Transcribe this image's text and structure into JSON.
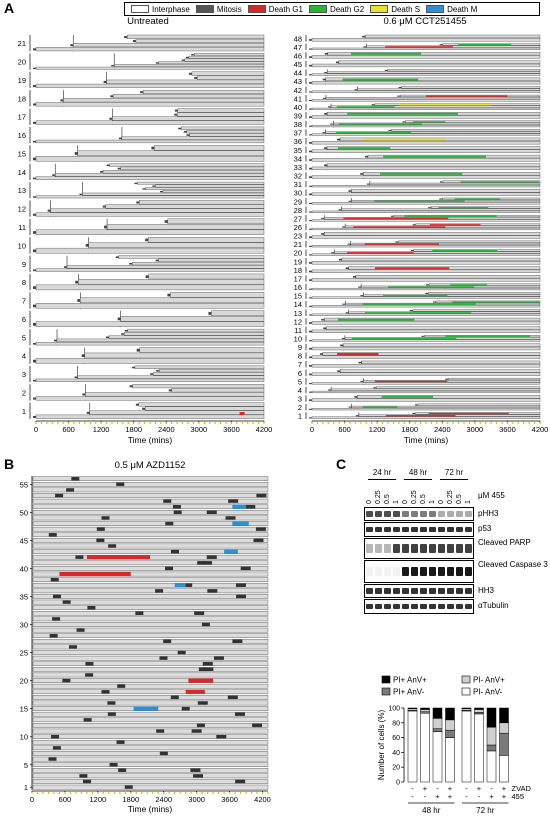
{
  "figure": {
    "panel_letters": [
      "A",
      "B",
      "C"
    ],
    "legend": [
      {
        "label": "Interphase",
        "color": "#ffffff"
      },
      {
        "label": "Mitosis",
        "color": "#555555"
      },
      {
        "label": "Death G1",
        "color": "#d62a2a"
      },
      {
        "label": "Death G2",
        "color": "#2bb33a"
      },
      {
        "label": "Death S",
        "color": "#e8e233"
      },
      {
        "label": "Death M",
        "color": "#2e8fd3"
      }
    ],
    "untreated": {
      "title": "Untreated",
      "xlabel": "Time (mins)",
      "x_ticks": [
        "0",
        "600",
        "1200",
        "1800",
        "2400",
        "3000",
        "3600",
        "4200"
      ],
      "lineage_labels": [
        "1",
        "2",
        "3",
        "4",
        "5",
        "6",
        "7",
        "8",
        "9",
        "10",
        "11",
        "12",
        "13",
        "14",
        "15",
        "16",
        "17",
        "18",
        "19",
        "20",
        "21"
      ]
    },
    "cct": {
      "title": "0.6 μM CCT251455",
      "xlabel": "Time (mins)",
      "x_ticks": [
        "0",
        "600",
        "1200",
        "1800",
        "2400",
        "3000",
        "3600",
        "4200"
      ],
      "lineage_labels": [
        "1",
        "2",
        "3",
        "4",
        "5",
        "6",
        "7",
        "8",
        "9",
        "10",
        "11",
        "12",
        "13",
        "14",
        "15",
        "16",
        "17",
        "18",
        "19",
        "20",
        "21",
        "23",
        "26",
        "27",
        "28",
        "29",
        "30",
        "31",
        "32",
        "33",
        "34",
        "35",
        "36",
        "37",
        "38",
        "39",
        "40",
        "41",
        "42",
        "43",
        "44",
        "45",
        "46",
        "47",
        "48"
      ]
    },
    "azd": {
      "title": "0.5 μM AZD1152",
      "xlabel": "Time (mins)",
      "x_ticks": [
        "0",
        "600",
        "1200",
        "1800",
        "2400",
        "3000",
        "3600",
        "4200"
      ],
      "y_labels": [
        "1",
        "5",
        "10",
        "15",
        "20",
        "25",
        "30",
        "35",
        "40",
        "45",
        "50",
        "55"
      ]
    },
    "blot": {
      "timepoints": [
        "24 hr",
        "48 hr",
        "72 hr"
      ],
      "concentrations": [
        "0",
        "0.25",
        "0.5",
        "1",
        "0",
        "0.25",
        "0.5",
        "1",
        "0",
        "0.25",
        "0.5",
        "1"
      ],
      "unit_label": "μM 455",
      "rows": [
        "pHH3",
        "p53",
        "Cleaved PARP",
        "Cleaved Caspase 3",
        "HH3",
        "αTubulin"
      ]
    },
    "stack": {
      "legend": [
        "PI+ AnV+",
        "PI- AnV+",
        "PI+ AnV-",
        "PI- AnV-"
      ],
      "legend_colors": [
        "#000000",
        "#cfcfcf",
        "#7a7a7a",
        "#ffffff"
      ],
      "ylabel": "Number of cells (%)",
      "y_ticks": [
        "0",
        "20",
        "40",
        "60",
        "80",
        "100"
      ],
      "zvad_label": "ZVAD",
      "drug_label": "455",
      "zvad_signs": [
        "-",
        "+",
        "-",
        "+",
        "-",
        "+",
        "-",
        "+"
      ],
      "drug_signs": [
        "-",
        "-",
        "+",
        "+",
        "-",
        "-",
        "+",
        "+"
      ],
      "group_labels": [
        "48 hr",
        "72 hr"
      ]
    }
  },
  "chart_data": [
    {
      "type": "bar",
      "title": "",
      "xlabel": "",
      "ylabel": "Number of cells (%)",
      "ylim": [
        0,
        100
      ],
      "categories": [
        "48h - -",
        "48h + -",
        "48h - +",
        "48h + +",
        "72h - -",
        "72h + -",
        "72h - +",
        "72h + +"
      ],
      "series": [
        {
          "name": "PI- AnV-",
          "values": [
            96,
            93,
            68,
            60,
            96,
            92,
            42,
            36
          ]
        },
        {
          "name": "PI+ AnV-",
          "values": [
            1,
            2,
            4,
            10,
            1,
            2,
            8,
            30
          ]
        },
        {
          "name": "PI- AnV+",
          "values": [
            2,
            3,
            14,
            14,
            2,
            4,
            24,
            14
          ]
        },
        {
          "name": "PI+ AnV+",
          "values": [
            1,
            2,
            14,
            16,
            1,
            2,
            26,
            20
          ]
        }
      ]
    }
  ]
}
